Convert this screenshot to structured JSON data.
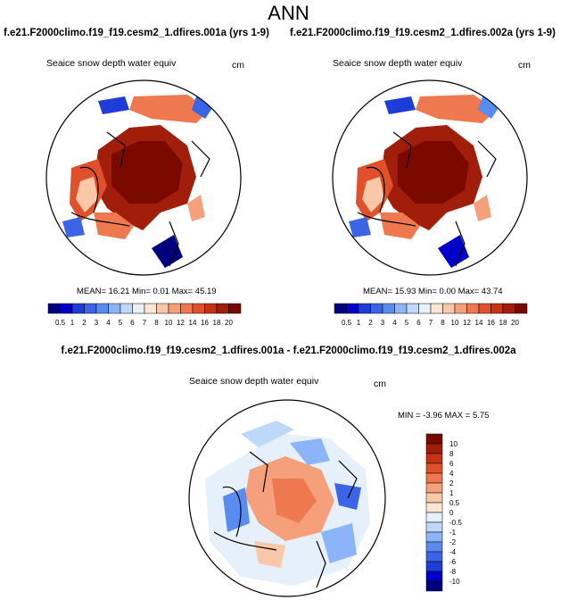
{
  "title": "ANN",
  "panel1": {
    "case": "f.e21.F2000climo.f19_f19.cesm2_1.dfires.001a (yrs 1-9)",
    "variable": "Seaice snow depth water equiv",
    "units": "cm",
    "stats": "MEAN= 16.21 Min= 0.01 Max= 45.19"
  },
  "panel2": {
    "case": "f.e21.F2000climo.f19_f19.cesm2_1.dfires.002a (yrs 1-9)",
    "variable": "Seaice snow depth water equiv",
    "units": "cm",
    "stats": "MEAN= 15.93 Min= 0.00 Max= 43.74"
  },
  "diff": {
    "case": "f.e21.F2000climo.f19_f19.cesm2_1.dfires.001a - f.e21.F2000climo.f19_f19.cesm2_1.dfires.002a",
    "variable": "Seaice snow depth water equiv",
    "units": "cm",
    "stats": "MIN = -3.96 MAX = 5.75"
  },
  "colorbar_top": {
    "labels": [
      "0.5",
      "1",
      "2",
      "3",
      "4",
      "5",
      "6",
      "7",
      "8",
      "10",
      "12",
      "14",
      "16",
      "18",
      "20"
    ],
    "colors": [
      "#00007f",
      "#0000c8",
      "#1e3cd8",
      "#3c64e6",
      "#5a8cf0",
      "#8cb4f8",
      "#bed8fa",
      "#e6f0fa",
      "#fbe6d2",
      "#f8c8a8",
      "#f5a07a",
      "#ee7850",
      "#e0502a",
      "#c83214",
      "#a01e0a",
      "#7a0a00"
    ]
  },
  "colorbar_diff": {
    "labels": [
      "10",
      "8",
      "6",
      "4",
      "2",
      "1",
      "0.5",
      "0",
      "-0.5",
      "-1",
      "-2",
      "-4",
      "-6",
      "-8",
      "-10"
    ],
    "colors": [
      "#7a0a00",
      "#a01e0a",
      "#c83214",
      "#e0502a",
      "#ee7850",
      "#f5a07a",
      "#f8c8a8",
      "#fbe6d2",
      "#e6f0fa",
      "#bed8fa",
      "#8cb4f8",
      "#5a8cf0",
      "#3c64e6",
      "#1e3cd8",
      "#0000c8",
      "#00007f"
    ]
  },
  "map_icons": [
    "polar-stereographic-map"
  ]
}
